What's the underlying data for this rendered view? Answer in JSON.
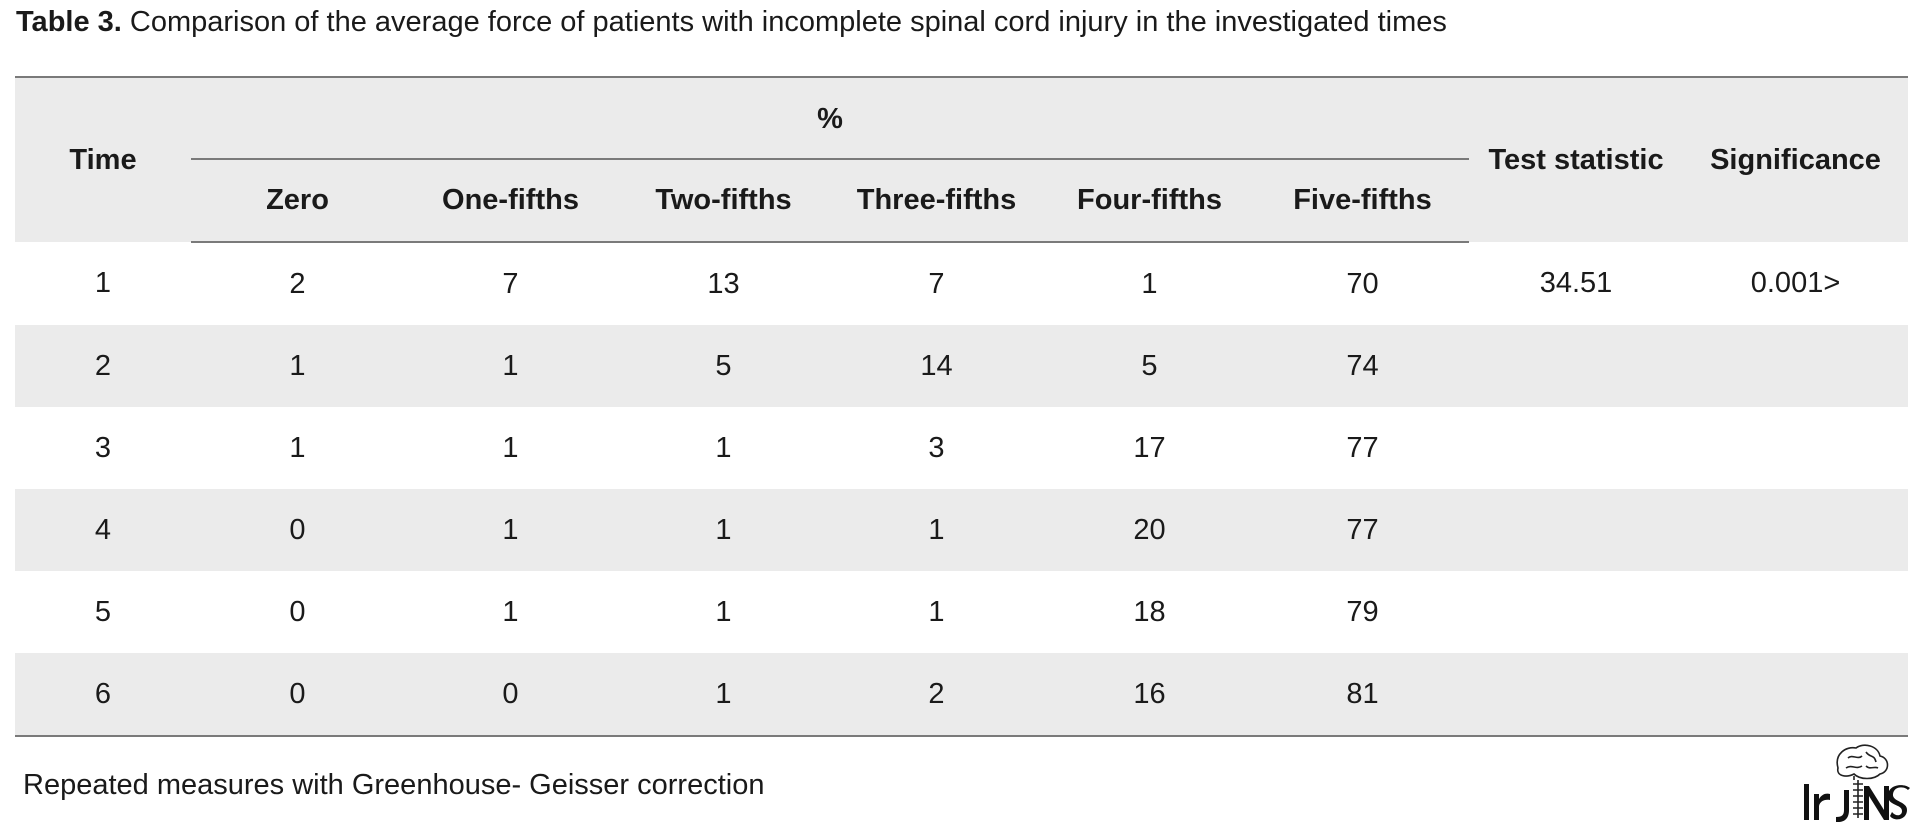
{
  "caption": {
    "label": "Table 3.",
    "text": "Comparison of the average force of patients with incomplete spinal cord injury in the investigated times"
  },
  "table": {
    "headers": {
      "time": "Time",
      "group": "%",
      "sub": [
        "Zero",
        "One-fifths",
        "Two-fifths",
        "Three-fifths",
        "Four-fifths",
        "Five-fifths"
      ],
      "test": "Test statistic",
      "sig": "Significance"
    },
    "rows": [
      [
        "1",
        "2",
        "7",
        "13",
        "7",
        "1",
        "70",
        "34.51",
        "0.001>"
      ],
      [
        "2",
        "1",
        "1",
        "5",
        "14",
        "5",
        "74",
        "",
        ""
      ],
      [
        "3",
        "1",
        "1",
        "1",
        "3",
        "17",
        "77",
        "",
        ""
      ],
      [
        "4",
        "0",
        "1",
        "1",
        "1",
        "20",
        "77",
        "",
        ""
      ],
      [
        "5",
        "0",
        "1",
        "1",
        "1",
        "18",
        "79",
        "",
        ""
      ],
      [
        "6",
        "0",
        "0",
        "1",
        "2",
        "16",
        "81",
        "",
        ""
      ]
    ]
  },
  "footnote": "Repeated measures with Greenhouse- Geisser correction",
  "logo": {
    "icon": "brain-spine-logo",
    "text": "IrJNS"
  }
}
